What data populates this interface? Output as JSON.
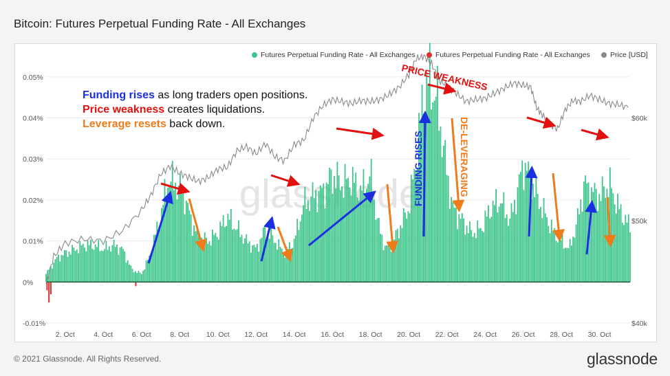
{
  "title": "Bitcoin: Futures Perpetual Funding Rate - All Exchanges",
  "footer": {
    "copyright": "© 2021 Glassnode. All Rights Reserved.",
    "brand": "glassnode"
  },
  "watermark": "glassnode",
  "legend": [
    {
      "label": "Futures Perpetual Funding Rate - All Exchanges",
      "color": "#3cc48a"
    },
    {
      "label": "Futures Perpetual Funding Rate - All Exchanges",
      "color": "#e03030"
    },
    {
      "label": "Price [USD]",
      "color": "#888888"
    }
  ],
  "notes": [
    {
      "bold": "Funding rises",
      "rest": " as long traders open positions.",
      "color": "#1a2fe0"
    },
    {
      "bold": "Price weakness",
      "rest": " creates liquidations.",
      "color": "#e31010"
    },
    {
      "bold": "Leverage resets",
      "rest": " back down.",
      "color": "#f07b1a"
    }
  ],
  "annotations": [
    {
      "text": "PRICE WEAKNESS",
      "color": "#e31010"
    },
    {
      "text": "FUNDING RISES",
      "color": "#1a2fe0"
    },
    {
      "text": "DE-LEVERAGING",
      "color": "#f07b1a"
    }
  ],
  "chart_data": {
    "type": "bar",
    "x_ticks": [
      "2. Oct",
      "4. Oct",
      "6. Oct",
      "8. Oct",
      "10. Oct",
      "12. Oct",
      "14. Oct",
      "16. Oct",
      "18. Oct",
      "20. Oct",
      "22. Oct",
      "24. Oct",
      "26. Oct",
      "28. Oct",
      "30. Oct"
    ],
    "y_left_ticks": [
      "0.05%",
      "0.04%",
      "0.03%",
      "0.02%",
      "0.01%",
      "0%",
      "-0.01%"
    ],
    "y_left_lim": [
      -0.0001,
      0.00055
    ],
    "y_right_ticks": [
      "$60k",
      "$50k",
      "$40k"
    ],
    "y_right_lim": [
      40000,
      66000
    ],
    "x_range_days": [
      1,
      31.6
    ],
    "funding_rate_anchors": [
      [
        1.0,
        2e-05
      ],
      [
        1.3,
        4e-05
      ],
      [
        1.6,
        6e-05
      ],
      [
        2.0,
        7e-05
      ],
      [
        2.5,
        8e-05
      ],
      [
        3.0,
        9e-05
      ],
      [
        3.5,
        9e-05
      ],
      [
        4.0,
        8e-05
      ],
      [
        4.5,
        9e-05
      ],
      [
        5.0,
        8e-05
      ],
      [
        5.5,
        3e-05
      ],
      [
        6.0,
        2e-05
      ],
      [
        6.4,
        6e-05
      ],
      [
        7.0,
        0.00016
      ],
      [
        7.4,
        0.00025
      ],
      [
        7.8,
        0.00024
      ],
      [
        8.2,
        0.00022
      ],
      [
        8.6,
        0.00015
      ],
      [
        9.0,
        0.00011
      ],
      [
        9.5,
        0.0001
      ],
      [
        10.0,
        0.00012
      ],
      [
        10.5,
        0.00016
      ],
      [
        11.0,
        0.00013
      ],
      [
        11.5,
        0.0001
      ],
      [
        12.0,
        8e-05
      ],
      [
        12.5,
        0.00013
      ],
      [
        13.0,
        0.0001
      ],
      [
        13.5,
        7e-05
      ],
      [
        14.0,
        0.0001
      ],
      [
        14.5,
        0.00019
      ],
      [
        15.0,
        0.00021
      ],
      [
        15.5,
        0.00022
      ],
      [
        16.0,
        0.00026
      ],
      [
        16.5,
        0.00024
      ],
      [
        17.0,
        0.00025
      ],
      [
        17.5,
        0.00022
      ],
      [
        18.0,
        0.00026
      ],
      [
        18.4,
        0.00014
      ],
      [
        18.8,
        8e-05
      ],
      [
        19.2,
        0.0001
      ],
      [
        19.6,
        0.00014
      ],
      [
        20.0,
        0.00018
      ],
      [
        20.4,
        0.0003
      ],
      [
        20.8,
        0.00047
      ],
      [
        21.1,
        0.00049
      ],
      [
        21.5,
        0.00044
      ],
      [
        21.9,
        0.0003
      ],
      [
        22.3,
        0.00018
      ],
      [
        22.8,
        0.00015
      ],
      [
        23.3,
        0.00012
      ],
      [
        23.8,
        0.00013
      ],
      [
        24.3,
        0.00018
      ],
      [
        24.8,
        0.0002
      ],
      [
        25.3,
        0.00015
      ],
      [
        25.7,
        0.00022
      ],
      [
        26.0,
        0.00029
      ],
      [
        26.4,
        0.00025
      ],
      [
        26.8,
        0.0002
      ],
      [
        27.2,
        0.00016
      ],
      [
        27.6,
        0.00012
      ],
      [
        28.0,
        0.0001
      ],
      [
        28.4,
        8e-05
      ],
      [
        28.8,
        0.00014
      ],
      [
        29.2,
        0.00024
      ],
      [
        29.6,
        0.00022
      ],
      [
        30.0,
        0.00021
      ],
      [
        30.5,
        0.00024
      ],
      [
        31.0,
        0.00018
      ],
      [
        31.5,
        0.00014
      ]
    ],
    "negative_funding": [
      [
        1.05,
        -2e-05
      ],
      [
        1.15,
        -5e-05
      ],
      [
        1.25,
        -3e-05
      ],
      [
        5.7,
        -1e-05
      ]
    ],
    "price_usd": [
      [
        1.0,
        43800
      ],
      [
        1.4,
        46500
      ],
      [
        2.0,
        47800
      ],
      [
        3.0,
        48200
      ],
      [
        4.0,
        48000
      ],
      [
        5.0,
        49000
      ],
      [
        6.0,
        51000
      ],
      [
        6.5,
        52500
      ],
      [
        7.0,
        54500
      ],
      [
        7.5,
        55300
      ],
      [
        8.0,
        54600
      ],
      [
        8.5,
        54200
      ],
      [
        9.0,
        53800
      ],
      [
        9.5,
        54200
      ],
      [
        10.0,
        55000
      ],
      [
        10.5,
        55200
      ],
      [
        11.0,
        56800
      ],
      [
        11.5,
        57200
      ],
      [
        12.0,
        56500
      ],
      [
        12.5,
        57500
      ],
      [
        13.0,
        56200
      ],
      [
        13.5,
        55800
      ],
      [
        14.0,
        57400
      ],
      [
        14.5,
        57800
      ],
      [
        15.0,
        60000
      ],
      [
        15.5,
        61200
      ],
      [
        16.0,
        61800
      ],
      [
        16.5,
        61600
      ],
      [
        17.0,
        61400
      ],
      [
        17.5,
        61700
      ],
      [
        18.0,
        61600
      ],
      [
        18.5,
        61800
      ],
      [
        19.0,
        62300
      ],
      [
        19.5,
        63000
      ],
      [
        20.0,
        64200
      ],
      [
        20.4,
        65800
      ],
      [
        20.8,
        66000
      ],
      [
        21.2,
        65300
      ],
      [
        21.6,
        63600
      ],
      [
        22.0,
        63200
      ],
      [
        22.5,
        62400
      ],
      [
        23.0,
        61600
      ],
      [
        23.5,
        61800
      ],
      [
        24.0,
        61900
      ],
      [
        24.5,
        62400
      ],
      [
        25.0,
        62900
      ],
      [
        25.5,
        63400
      ],
      [
        26.0,
        63200
      ],
      [
        26.4,
        63000
      ],
      [
        26.7,
        61000
      ],
      [
        27.0,
        60300
      ],
      [
        27.4,
        59400
      ],
      [
        27.8,
        58900
      ],
      [
        28.2,
        60800
      ],
      [
        28.6,
        61700
      ],
      [
        29.0,
        61600
      ],
      [
        29.5,
        62200
      ],
      [
        30.0,
        61800
      ],
      [
        30.5,
        61400
      ],
      [
        31.0,
        61300
      ],
      [
        31.5,
        61000
      ]
    ],
    "grid": true,
    "legend_position": "top-right"
  }
}
